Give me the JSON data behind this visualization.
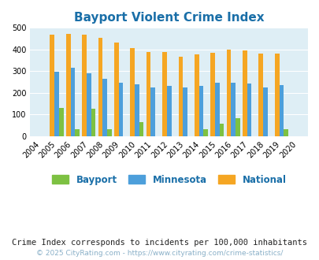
{
  "title": "Bayport Violent Crime Index",
  "years": [
    2004,
    2005,
    2006,
    2007,
    2008,
    2009,
    2010,
    2011,
    2012,
    2013,
    2014,
    2015,
    2016,
    2017,
    2018,
    2019,
    2020
  ],
  "bayport": [
    0,
    130,
    33,
    127,
    33,
    0,
    65,
    0,
    0,
    0,
    30,
    58,
    82,
    0,
    0,
    30,
    0
  ],
  "minnesota": [
    0,
    298,
    315,
    291,
    264,
    247,
    238,
    224,
    233,
    224,
    231,
    245,
    245,
    241,
    224,
    237,
    0
  ],
  "national": [
    0,
    470,
    473,
    467,
    455,
    432,
    405,
    390,
    390,
    368,
    378,
    383,
    398,
    394,
    381,
    380,
    0
  ],
  "bayport_color": "#7dc142",
  "minnesota_color": "#4d9fdb",
  "national_color": "#f5a623",
  "plot_bg_color": "#deeef5",
  "ylim": [
    0,
    500
  ],
  "yticks": [
    0,
    100,
    200,
    300,
    400,
    500
  ],
  "title_color": "#1a6fa8",
  "title_fontsize": 11,
  "footnote1": "Crime Index corresponds to incidents per 100,000 inhabitants",
  "footnote2": "© 2025 CityRating.com - https://www.cityrating.com/crime-statistics/",
  "footnote1_color": "#222222",
  "footnote2_color": "#8ab0c8"
}
